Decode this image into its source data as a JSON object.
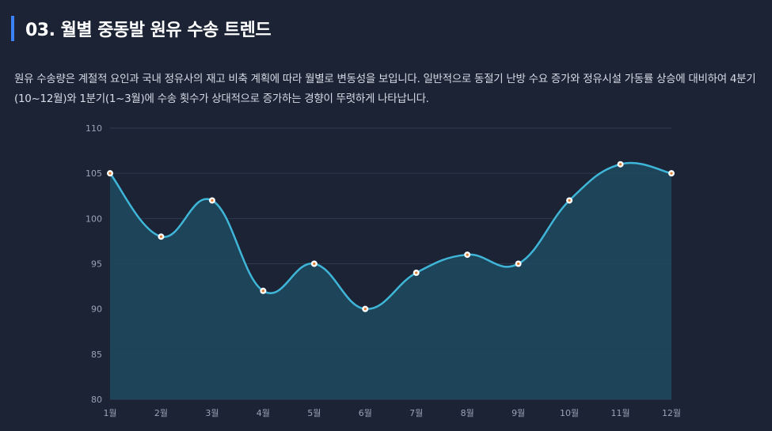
{
  "section": {
    "title": "03. 월별 중동발 원유 수송 트렌드",
    "description": "원유 수송량은 계절적 요인과 국내 정유사의 재고 비축 계획에 따라 월별로 변동성을 보입니다. 일반적으로 동절기 난방 수요 증가와 정유시설 가동률 상승에 대비하여 4분기(10~12월)와 1분기(1~3월)에 수송 횟수가 상대적으로 증가하는 경향이 뚜렷하게 나타납니다."
  },
  "colors": {
    "accent": "#3b82f6",
    "line": "#3fb6d8",
    "area": "#1f4a5f",
    "grid": "#2f3a4f",
    "point_fill": "#ffffff",
    "point_center": "#e07b2a"
  },
  "chart_data": {
    "type": "area",
    "title": "",
    "xlabel": "",
    "ylabel": "",
    "categories": [
      "1월",
      "2월",
      "3월",
      "4월",
      "5월",
      "6월",
      "7월",
      "8월",
      "9월",
      "10월",
      "11월",
      "12월"
    ],
    "values": [
      105,
      98,
      102,
      92,
      95,
      90,
      94,
      96,
      95,
      102,
      106,
      105
    ],
    "ylim": [
      80,
      110
    ],
    "yticks": [
      80,
      85,
      90,
      95,
      100,
      105,
      110
    ],
    "grid": true,
    "legend": "none"
  }
}
